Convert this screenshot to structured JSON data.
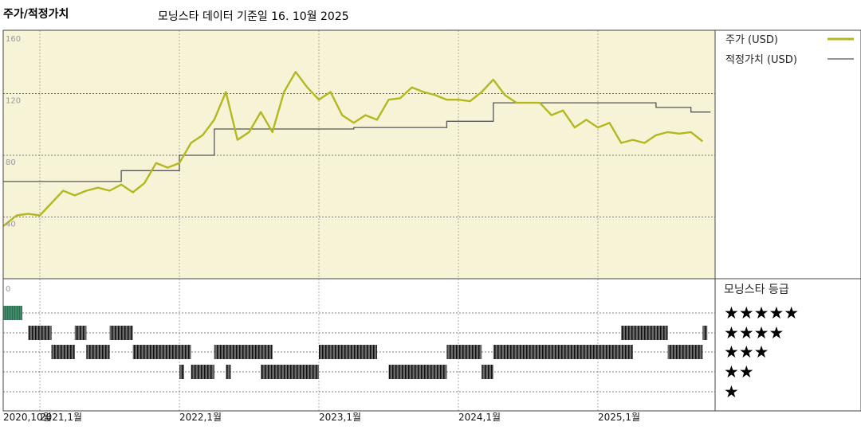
{
  "header": {
    "title": "주가/적정가치",
    "subtitle": "모닝스타 데이터 기준일 16. 10월 2025"
  },
  "colors": {
    "price": "#b3b820",
    "fair_value": "#555555",
    "plot_bg": "#f7f3d6",
    "five_star": "#3f8a68",
    "rating_bar": "#333333"
  },
  "chart_data": [
    {
      "type": "line",
      "title": "주가/적정가치",
      "ylim": [
        0,
        160
      ],
      "yticks": [
        "160",
        "120",
        "80",
        "40"
      ],
      "grid": true,
      "legend_placement": "right",
      "xticks": [
        "2020,10월",
        "2021,1월",
        "2022,1월",
        "2023,1월",
        "2024,1월",
        "2025,1월"
      ],
      "series": [
        {
          "name": "주가 (USD)",
          "x": [
            "2020-10",
            "2020-11",
            "2020-12",
            "2021-01",
            "2021-02",
            "2021-03",
            "2021-04",
            "2021-05",
            "2021-06",
            "2021-07",
            "2021-08",
            "2021-09",
            "2021-10",
            "2021-11",
            "2021-12",
            "2022-01",
            "2022-02",
            "2022-03",
            "2022-04",
            "2022-05",
            "2022-06",
            "2022-07",
            "2022-08",
            "2022-09",
            "2022-10",
            "2022-11",
            "2022-12",
            "2023-01",
            "2023-02",
            "2023-03",
            "2023-04",
            "2023-05",
            "2023-06",
            "2023-07",
            "2023-08",
            "2023-09",
            "2023-10",
            "2023-11",
            "2023-12",
            "2024-01",
            "2024-02",
            "2024-03",
            "2024-04",
            "2024-05",
            "2024-06",
            "2024-07",
            "2024-08",
            "2024-09",
            "2024-10",
            "2024-11",
            "2024-12",
            "2025-01",
            "2025-02",
            "2025-03",
            "2025-04",
            "2025-05",
            "2025-06",
            "2025-07",
            "2025-08",
            "2025-09",
            "2025-10"
          ],
          "values": [
            34,
            41,
            42,
            41,
            49,
            57,
            54,
            57,
            59,
            57,
            61,
            56,
            62,
            75,
            72,
            75,
            88,
            93,
            103,
            121,
            90,
            95,
            108,
            95,
            121,
            134,
            124,
            116,
            121,
            106,
            101,
            106,
            103,
            116,
            117,
            124,
            121,
            119,
            116,
            116,
            115,
            121,
            129,
            119,
            114,
            114,
            114,
            106,
            109,
            98,
            103,
            98,
            101,
            88,
            90,
            88,
            93,
            95,
            94,
            95,
            89
          ]
        },
        {
          "name": "적정가치 (USD)",
          "x": [
            "2020-10",
            "2021-08",
            "2022-01",
            "2022-04",
            "2023-04",
            "2023-12",
            "2024-04",
            "2025-06",
            "2025-09",
            "2025-10"
          ],
          "values": [
            63,
            70,
            80,
            97,
            98,
            102,
            114,
            111,
            108,
            108
          ]
        }
      ]
    },
    {
      "type": "timeline",
      "title": "모닝스타 등급",
      "ytick": "0",
      "rows": [
        {
          "label": "★★★★★",
          "stars": 5,
          "ranges": [
            [
              "2020-10",
              "2020-12"
            ]
          ]
        },
        {
          "label": "★★★★",
          "stars": 4,
          "ranges": [
            [
              "2020-12",
              "2021-02"
            ],
            [
              "2021-04",
              "2021-05"
            ],
            [
              "2021-07",
              "2021-09"
            ],
            [
              "2025-03",
              "2025-07"
            ],
            [
              "2025-10",
              "2025-10"
            ]
          ]
        },
        {
          "label": "★★★",
          "stars": 3,
          "ranges": [
            [
              "2021-02",
              "2021-04"
            ],
            [
              "2021-05",
              "2021-07"
            ],
            [
              "2021-09",
              "2022-01"
            ],
            [
              "2022-01",
              "2022-02"
            ],
            [
              "2022-04",
              "2022-05"
            ],
            [
              "2022-05",
              "2022-08"
            ],
            [
              "2022-08",
              "2022-09"
            ],
            [
              "2023-01",
              "2023-06"
            ],
            [
              "2023-12",
              "2024-03"
            ],
            [
              "2024-04",
              "2025-03"
            ],
            [
              "2025-03",
              "2025-04"
            ],
            [
              "2025-07",
              "2025-10"
            ]
          ]
        },
        {
          "label": "★★",
          "stars": 2,
          "ranges": [
            [
              "2022-01",
              "2022-01"
            ],
            [
              "2022-02",
              "2022-04"
            ],
            [
              "2022-05",
              "2022-05"
            ],
            [
              "2022-08",
              "2022-09"
            ],
            [
              "2022-09",
              "2023-01"
            ],
            [
              "2023-07",
              "2023-12"
            ],
            [
              "2024-03",
              "2024-04"
            ]
          ]
        },
        {
          "label": "★",
          "stars": 1,
          "ranges": []
        }
      ]
    }
  ]
}
